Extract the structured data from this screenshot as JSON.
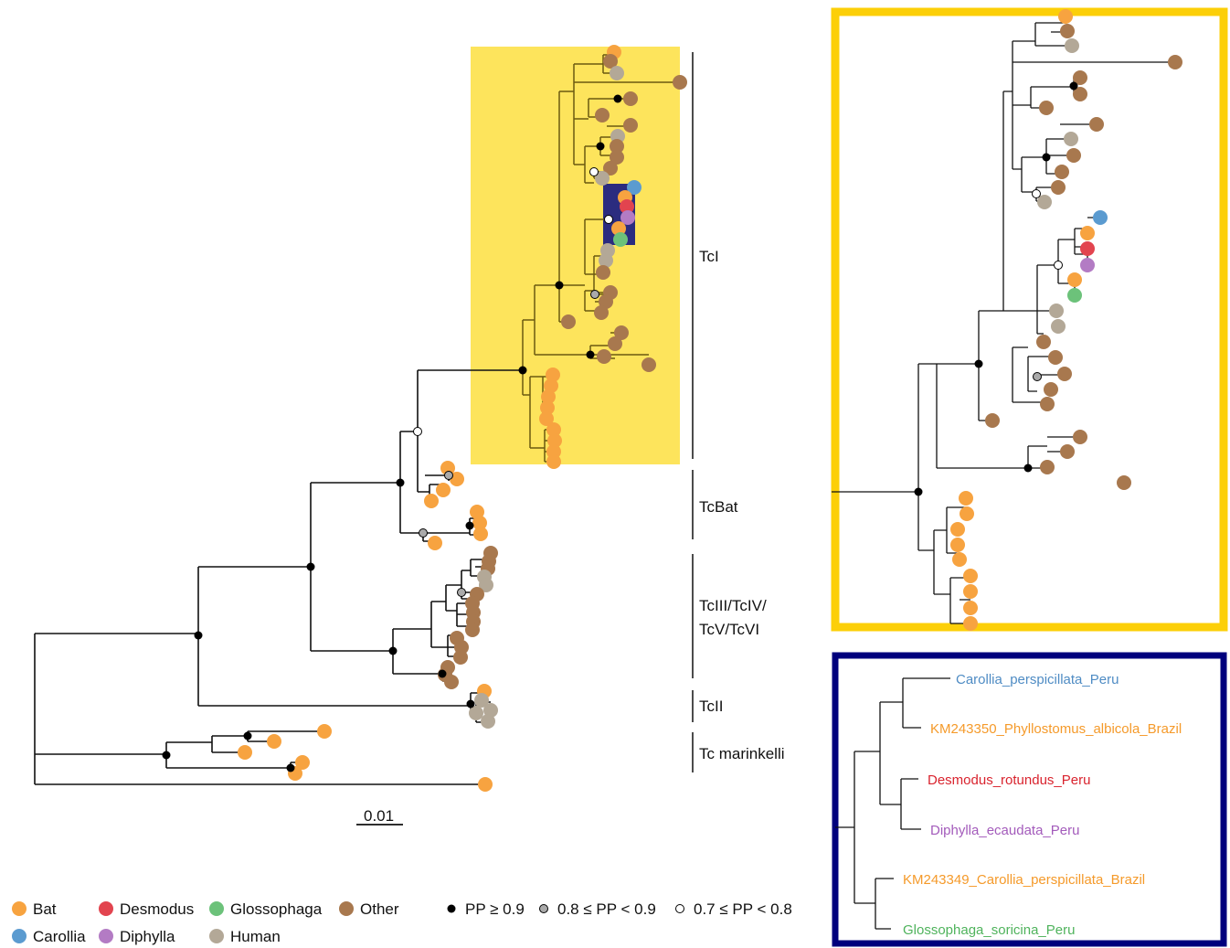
{
  "colors": {
    "Bat": "#f7a340",
    "Carollia": "#5b9bd0",
    "Desmodus": "#e2444f",
    "Diphylla": "#b37bc4",
    "Glossophaga": "#6cc27a",
    "Human": "#b3a897",
    "Other": "#a8784e",
    "yellow_box": "#fde45c",
    "yellow_frame": "#fccf08",
    "blue_box": "#2b2c7f",
    "blue_frame": "#00007d"
  },
  "clades": [
    {
      "id": "tci",
      "label": "TcI"
    },
    {
      "id": "tcbat",
      "label": "TcBat"
    },
    {
      "id": "tciii",
      "label": "TcIII/TcIV/\nTcV/TcVI",
      "lines": [
        "TcIII/TcIV/",
        "TcV/TcVI"
      ]
    },
    {
      "id": "tcii",
      "label": "TcII"
    },
    {
      "id": "tcmar",
      "label": "Tc marinkelli"
    }
  ],
  "scale_bar": {
    "label": "0.01"
  },
  "legend": {
    "hosts": [
      {
        "name": "Bat",
        "color_key": "Bat"
      },
      {
        "name": "Desmodus",
        "color_key": "Desmodus"
      },
      {
        "name": "Glossophaga",
        "color_key": "Glossophaga"
      },
      {
        "name": "Other",
        "color_key": "Other"
      },
      {
        "name": "Carollia",
        "color_key": "Carollia"
      },
      {
        "name": "Diphylla",
        "color_key": "Diphylla"
      },
      {
        "name": "Human",
        "color_key": "Human"
      }
    ],
    "support": [
      {
        "symbol": "filled-black",
        "label": "PP ≥ 0.9"
      },
      {
        "symbol": "filled-grey",
        "label": "0.8 ≤ PP < 0.9"
      },
      {
        "symbol": "open-white",
        "label": "0.7 ≤ PP < 0.8"
      }
    ]
  },
  "inset_taxa": [
    {
      "name": "Carollia_perspicillata_Peru",
      "color_key": "Carollia"
    },
    {
      "name": "KM243350_Phyllostomus_albicola_Brazil",
      "color_key": "Bat"
    },
    {
      "name": "Desmodus_rotundus_Peru",
      "color_key": "Desmodus"
    },
    {
      "name": "Diphylla_ecaudata_Peru",
      "color_key": "Diphylla"
    },
    {
      "name": "KM243349_Carollia_perspicillata_Brazil",
      "color_key": "Bat"
    },
    {
      "name": "Glossophaga_soricina_Peru",
      "color_key": "Glossophaga"
    }
  ]
}
